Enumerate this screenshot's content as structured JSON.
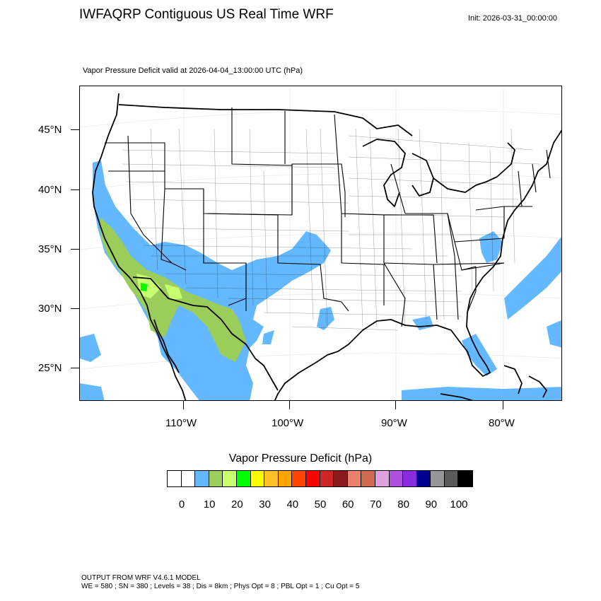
{
  "title": "IWFAQRP Contiguous US Real Time WRF",
  "init": "Init: 2026-03-31_00:00:00",
  "subtitle": "Vapor Pressure Deficit valid at 2026-04-04_13:00:00 UTC   (hPa)",
  "lat_labels": [
    "45°N",
    "40°N",
    "35°N",
    "30°N",
    "25°N"
  ],
  "lon_labels": [
    "110°W",
    "100°W",
    "90°W",
    "80°W"
  ],
  "colorbar": {
    "title": "Vapor Pressure Deficit  (hPa)",
    "colors": [
      "#ffffff",
      "#ffffff",
      "#63b8ff",
      "#9acd5a",
      "#c8ff6e",
      "#00ff00",
      "#ffff00",
      "#ffc125",
      "#ffa500",
      "#ff4500",
      "#ff0000",
      "#cd2626",
      "#8b1a1a",
      "#e9826b",
      "#cd6a50",
      "#e0a0e0",
      "#b050e0",
      "#8a2be2",
      "#000090",
      "#969696",
      "#5a5a5a",
      "#000000"
    ],
    "labels": [
      "0",
      "10",
      "20",
      "30",
      "40",
      "50",
      "60",
      "70",
      "80",
      "90",
      "100"
    ]
  },
  "map_colors": {
    "vpd_10_20": "#63b8ff",
    "vpd_20_30": "#9acd5a",
    "vpd_30_40": "#c8ff6e",
    "vpd_40_50": "#00ff00"
  },
  "footer": {
    "line1": "OUTPUT FROM WRF V4.6.1 MODEL",
    "line2": "WE = 580 ; SN = 380 ; Levels = 38 ; Dis = 8km ; Phys Opt = 8 ; PBL Opt = 1 ; Cu Opt = 5"
  }
}
